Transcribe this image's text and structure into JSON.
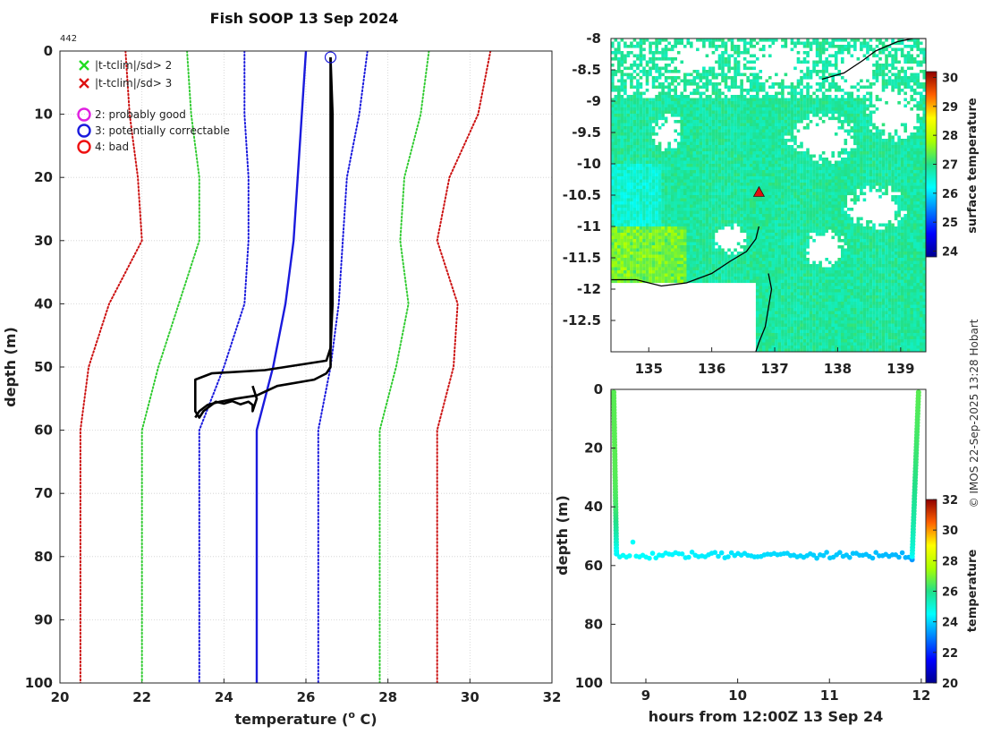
{
  "chart_data": [
    {
      "id": "profile",
      "type": "line",
      "title": "Fish SOOP 13 Sep 2024",
      "station_label": "442",
      "xlabel": "temperature (",
      "xlabel_sup": "o",
      "xlabel_tail": " C)",
      "ylabel": "depth (m)",
      "xlim": [
        20,
        32
      ],
      "ylim": [
        0,
        100
      ],
      "xticks": [
        20,
        22,
        24,
        26,
        28,
        30,
        32
      ],
      "yticks": [
        0,
        10,
        20,
        30,
        40,
        50,
        60,
        70,
        80,
        90,
        100
      ],
      "grid": true,
      "legend": [
        {
          "label": "|t-tclim|/sd> 2",
          "marker": "x",
          "color": "#22dd22"
        },
        {
          "label": "|t-tclim|/sd> 3",
          "marker": "x",
          "color": "#dd1111"
        },
        {
          "label": "2: probably good",
          "marker": "o",
          "color": "#e020e0"
        },
        {
          "label": "3: potentially correctable",
          "marker": "o",
          "color": "#1a1add"
        },
        {
          "label": "4: bad",
          "marker": "o",
          "color": "#ee1111"
        }
      ],
      "flag_marker": {
        "x": 26.6,
        "y": 1,
        "color": "#1a1add"
      },
      "series": [
        {
          "name": "clim_minus_3sd",
          "style": "dotted",
          "color": "#cc1111",
          "x": [
            21.6,
            21.7,
            21.9,
            22.0,
            21.2,
            20.7,
            20.5,
            20.5
          ],
          "y": [
            0,
            10,
            20,
            30,
            40,
            50,
            60,
            100
          ]
        },
        {
          "name": "clim_minus_2sd",
          "style": "dotted",
          "color": "#33cc33",
          "x": [
            23.1,
            23.2,
            23.4,
            23.4,
            22.9,
            22.4,
            22.0,
            22.0
          ],
          "y": [
            0,
            10,
            20,
            30,
            40,
            50,
            60,
            100
          ]
        },
        {
          "name": "clim_minus_1sd",
          "style": "dotted",
          "color": "#1a1add",
          "x": [
            24.5,
            24.5,
            24.6,
            24.6,
            24.5,
            24.0,
            23.4,
            23.4
          ],
          "y": [
            0,
            10,
            20,
            30,
            40,
            50,
            60,
            100
          ]
        },
        {
          "name": "climatology",
          "style": "solid",
          "color": "#1a1add",
          "x": [
            26.0,
            25.9,
            25.8,
            25.7,
            25.5,
            25.2,
            24.8,
            24.8
          ],
          "y": [
            0,
            10,
            20,
            30,
            40,
            50,
            60,
            100
          ]
        },
        {
          "name": "clim_plus_1sd",
          "style": "dotted",
          "color": "#1a1add",
          "x": [
            27.5,
            27.3,
            27.0,
            26.9,
            26.8,
            26.6,
            26.3,
            26.3
          ],
          "y": [
            0,
            10,
            20,
            30,
            40,
            50,
            60,
            100
          ]
        },
        {
          "name": "clim_plus_2sd",
          "style": "dotted",
          "color": "#33cc33",
          "x": [
            29.0,
            28.8,
            28.4,
            28.3,
            28.5,
            28.2,
            27.8,
            27.8
          ],
          "y": [
            0,
            10,
            20,
            30,
            40,
            50,
            60,
            100
          ]
        },
        {
          "name": "clim_plus_3sd",
          "style": "dotted",
          "color": "#cc1111",
          "x": [
            30.5,
            30.2,
            29.5,
            29.2,
            29.7,
            29.6,
            29.2,
            29.2
          ],
          "y": [
            0,
            10,
            20,
            30,
            40,
            50,
            60,
            100
          ]
        },
        {
          "name": "measured_down",
          "style": "solid",
          "color": "#000000",
          "x": [
            26.6,
            26.65,
            26.65,
            26.65,
            26.65,
            26.6,
            26.5,
            25.0,
            23.7,
            23.3,
            23.3,
            23.3,
            23.4,
            23.5,
            23.6,
            23.7,
            23.8,
            24.0,
            24.2,
            24.4,
            24.6,
            24.7,
            24.7,
            24.8,
            24.7
          ],
          "y": [
            1,
            10,
            20,
            30,
            40,
            47,
            49,
            50.5,
            51,
            52,
            54,
            57,
            58,
            57,
            56.5,
            56,
            55.5,
            55.8,
            55.4,
            55.9,
            55.5,
            56,
            57,
            55,
            53
          ]
        },
        {
          "name": "measured_up",
          "style": "solid",
          "color": "#000000",
          "x": [
            23.3,
            23.4,
            23.6,
            23.9,
            24.3,
            24.8,
            25.3,
            26.2,
            26.5,
            26.6,
            26.6,
            26.6,
            26.6,
            26.6
          ],
          "y": [
            58,
            57,
            56,
            55.5,
            55,
            54.5,
            53,
            52,
            51,
            50,
            40,
            20,
            10,
            1
          ]
        }
      ]
    },
    {
      "id": "sst_map",
      "type": "heatmap",
      "colorbar_label": "surface temperature",
      "xlim": [
        134.4,
        139.4
      ],
      "ylim": [
        -13,
        -8
      ],
      "xticks": [
        135,
        136,
        137,
        138,
        139
      ],
      "yticks": [
        -8,
        -8.5,
        -9,
        -9.5,
        -10,
        -10.5,
        -11,
        -11.5,
        -12,
        -12.5
      ],
      "xticklabels": [
        "135",
        "136",
        "137",
        "138",
        "139"
      ],
      "yticklabels": [
        "-8",
        "-8.5",
        "-9",
        "-9.5",
        "-10",
        "-10.5",
        "-11",
        "-11.5",
        "-12",
        "-12.5"
      ],
      "clim": [
        23.8,
        30.2
      ],
      "cticks": [
        24,
        25,
        26,
        27,
        28,
        29,
        30
      ],
      "station_marker": {
        "lon": 136.75,
        "lat": -10.45,
        "color": "#dd1111"
      },
      "coastline": [
        [
          [
            134.4,
            -11.85
          ],
          [
            134.8,
            -11.85
          ],
          [
            135.2,
            -11.95
          ],
          [
            135.6,
            -11.9
          ],
          [
            136.0,
            -11.75
          ],
          [
            136.3,
            -11.55
          ],
          [
            136.55,
            -11.4
          ],
          [
            136.7,
            -11.2
          ],
          [
            136.75,
            -11.0
          ]
        ],
        [
          [
            136.9,
            -11.75
          ],
          [
            136.95,
            -12.0
          ],
          [
            136.9,
            -12.3
          ],
          [
            136.85,
            -12.6
          ],
          [
            136.75,
            -12.85
          ],
          [
            136.7,
            -13.0
          ]
        ],
        [
          [
            137.75,
            -8.65
          ],
          [
            138.1,
            -8.55
          ],
          [
            138.4,
            -8.35
          ],
          [
            138.6,
            -8.2
          ],
          [
            138.95,
            -8.05
          ],
          [
            139.2,
            -8.0
          ],
          [
            139.4,
            -8.0
          ]
        ]
      ]
    },
    {
      "id": "time_depth",
      "type": "scatter",
      "xlabel": "hours from 12:00Z 13 Sep 24",
      "ylabel": "depth (m)",
      "colorbar_label": "temperature",
      "xlim": [
        8.62,
        12.05
      ],
      "ylim": [
        0,
        100
      ],
      "xticks": [
        9,
        10,
        11,
        12
      ],
      "yticks": [
        0,
        20,
        40,
        60,
        80,
        100
      ],
      "clim": [
        20,
        32
      ],
      "cticks": [
        20,
        22,
        24,
        26,
        28,
        30,
        32
      ],
      "descent": {
        "t_start": 8.65,
        "t_end": 8.68,
        "depth_start": 1,
        "depth_end": 56,
        "temp_start": 26.6,
        "temp_end": 24.4
      },
      "bottom": {
        "t_start": 8.68,
        "t_end": 11.9,
        "depth_mean": 56.5,
        "temp_start": 24.6,
        "temp_end": 23.6
      },
      "ascent": {
        "t_start": 11.9,
        "t_end": 11.97,
        "depth_start": 58,
        "depth_end": 1,
        "temp_start": 23.3,
        "temp_end": 26.6
      }
    }
  ],
  "credit": "© IMOS 22-Sep-2025 13:28 Hobart"
}
